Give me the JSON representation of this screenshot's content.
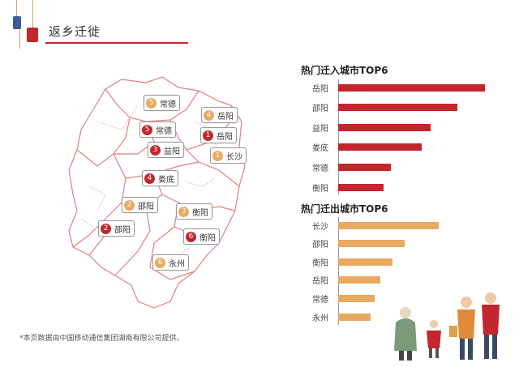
{
  "page": {
    "title": "返乡迁徙"
  },
  "map": {
    "pins": [
      {
        "type": "out",
        "num": "5",
        "label": "常德"
      },
      {
        "type": "out",
        "num": "4",
        "label": "岳阳"
      },
      {
        "type": "in",
        "num": "5",
        "label": "常德"
      },
      {
        "type": "in",
        "num": "1",
        "label": "岳阳"
      },
      {
        "type": "in",
        "num": "3",
        "label": "益阳"
      },
      {
        "type": "out",
        "num": "1",
        "label": "长沙"
      },
      {
        "type": "in",
        "num": "4",
        "label": "娄底"
      },
      {
        "type": "out",
        "num": "2",
        "label": "邵阳"
      },
      {
        "type": "out",
        "num": "3",
        "label": "衡阳"
      },
      {
        "type": "in",
        "num": "2",
        "label": "邵阳"
      },
      {
        "type": "in",
        "num": "6",
        "label": "衡阳"
      },
      {
        "type": "out",
        "num": "6",
        "label": "永州"
      }
    ]
  },
  "chart_data": [
    {
      "type": "bar",
      "title": "热门迁入城市TOP6",
      "categories": [
        "岳阳",
        "邵阳",
        "益阳",
        "娄底",
        "常德",
        "衡阳"
      ],
      "values": [
        100,
        81,
        63,
        57,
        36,
        31
      ],
      "color": "#c1272d"
    },
    {
      "type": "bar",
      "title": "热门迁出城市TOP6",
      "categories": [
        "长沙",
        "邵阳",
        "衡阳",
        "岳阳",
        "常德",
        "永州"
      ],
      "values": [
        100,
        66,
        54,
        42,
        36,
        32
      ],
      "color": "#e8a961"
    }
  ],
  "footnote": "*本页数据由中国移动通信集团湖南有限公司提供。",
  "colors": {
    "accent": "#c1272d",
    "secondary": "#e8a961",
    "map_line": "#e08080"
  }
}
